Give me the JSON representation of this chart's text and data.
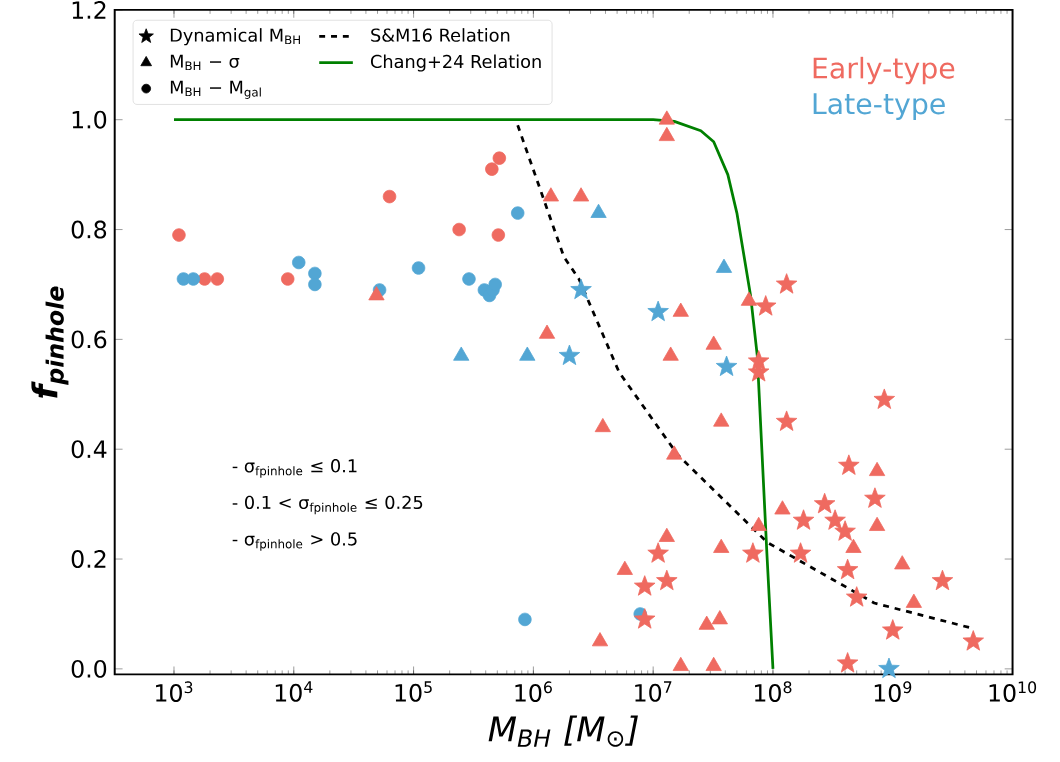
{
  "chart_data": {
    "type": "scatter",
    "xlabel": "M$_{BH}$ [M$_{⊙}$]",
    "ylabel": "f$_{pinhole}$",
    "log": "x",
    "xlim": [
      320,
      10000000000.0
    ],
    "ylim": [
      -0.01,
      1.2
    ],
    "xticks": [
      {
        "value": 1000,
        "label": "10$^{3}$"
      },
      {
        "value": 10000,
        "label": "10$^{4}$"
      },
      {
        "value": 100000,
        "label": "10$^{5}$"
      },
      {
        "value": 1000000,
        "label": "10$^{6}$"
      },
      {
        "value": 10000000,
        "label": "10$^{7}$"
      },
      {
        "value": 100000000,
        "label": "10$^{8}$"
      },
      {
        "value": 1000000000,
        "label": "10$^{9}$"
      },
      {
        "value": 10000000000,
        "label": "10$^{10}$"
      }
    ],
    "yticks": [
      {
        "value": 0,
        "label": "0.0"
      },
      {
        "value": 0.2,
        "label": "0.2"
      },
      {
        "value": 0.4,
        "label": "0.4"
      },
      {
        "value": 0.6,
        "label": "0.6"
      },
      {
        "value": 0.8,
        "label": "0.8"
      },
      {
        "value": 1.0,
        "label": "1.0"
      },
      {
        "value": 1.2,
        "label": "1.2"
      }
    ],
    "legend": "top left",
    "annotations": [
      "- σ$_{fpinhole}$ ≤ 0.1",
      "- 0.1 < σ$_{fpinhole}$ ≤ 0.25",
      "- σ$_{fpinhole}$ > 0.5"
    ],
    "series": [
      {
        "name": "Dynamical M$_{BH}$",
        "marker": "star",
        "color": "#000000"
      },
      {
        "name": "M$_{BH}$ − σ",
        "marker": "triangle",
        "color": "#000000"
      },
      {
        "name": "M$_{BH}$ − M$_{gal}$",
        "marker": "circle",
        "color": "#000000"
      },
      {
        "name": "S&M16 Relation",
        "type": "line",
        "line_style": "dashed",
        "color": "#000000",
        "x": [
          740000.0,
          1800000.0,
          2400000.0,
          5200000.0,
          16000000.0,
          90000000.0,
          700000000.0,
          4600000000.0
        ],
        "values": [
          0.99,
          0.75,
          0.71,
          0.54,
          0.39,
          0.23,
          0.12,
          0.074
        ]
      },
      {
        "name": "Chang+24 Relation",
        "type": "line",
        "line_style": "solid",
        "color": "#008000",
        "x": [
          1000.0,
          10000000.0,
          15000000.0,
          25000000.0,
          32000000.0,
          42000000.0,
          50000000.0,
          65000000.0,
          74000000.0,
          89000000.0,
          100000000.0
        ],
        "values": [
          1.0,
          1.0,
          0.997,
          0.98,
          0.96,
          0.9,
          0.83,
          0.68,
          0.57,
          0.21,
          0
        ]
      },
      {
        "marker": "circle",
        "color": "#ef6a60",
        "x": [
          1100.0,
          1800.0,
          2300.0,
          8900.0,
          63000.0,
          240000.0,
          450000.0,
          520000.0,
          510000.0
        ],
        "values": [
          0.79,
          0.71,
          0.71,
          0.71,
          0.86,
          0.8,
          0.91,
          0.93,
          0.79
        ]
      },
      {
        "marker": "circle",
        "color": "#52a6d4",
        "x": [
          1200.0,
          1450.0,
          11000.0,
          15000.0,
          15000.0,
          52000.0,
          110000.0,
          290000.0,
          390000.0,
          430000.0,
          460000.0,
          480000.0,
          740000.0,
          850000.0,
          7800000.0
        ],
        "values": [
          0.71,
          0.71,
          0.74,
          0.72,
          0.7,
          0.69,
          0.73,
          0.71,
          0.69,
          0.68,
          0.69,
          0.7,
          0.83,
          0.09,
          0.1
        ]
      },
      {
        "marker": "triangle",
        "color": "#ef6a60",
        "x": [
          49000.0,
          1400000.0,
          2500000.0,
          1300000.0,
          13000000.0,
          13000000.0,
          17000000.0,
          14000000.0,
          32000000.0,
          63000000.0,
          37000000.0,
          3800000.0,
          15000000.0,
          740000000.0,
          120000000.0,
          740000000.0,
          13000000.0,
          76000000.0,
          37000000.0,
          470000000.0,
          1200000000.0,
          5800000.0,
          1500000000.0,
          28000000.0,
          36000000.0,
          3600000.0,
          17000000.0,
          32000000.0
        ],
        "values": [
          0.68,
          0.86,
          0.86,
          0.61,
          1.0,
          0.97,
          0.65,
          0.57,
          0.59,
          0.67,
          0.45,
          0.44,
          0.39,
          0.36,
          0.29,
          0.26,
          0.24,
          0.26,
          0.22,
          0.22,
          0.19,
          0.18,
          0.12,
          0.08,
          0.09,
          0.05,
          0.005,
          0.005
        ]
      },
      {
        "marker": "triangle",
        "color": "#52a6d4",
        "x": [
          250000.0,
          890000.0,
          3500000.0,
          39000000.0
        ],
        "values": [
          0.57,
          0.57,
          0.83,
          0.73
        ]
      },
      {
        "name": "Early-type",
        "marker": "star",
        "color": "#ef6a60",
        "x": [
          87000000.0,
          130000000.0,
          76000000.0,
          850000000.0,
          130000000.0,
          430000000.0,
          710000000.0,
          270000000.0,
          180000000.0,
          330000000.0,
          400000000.0,
          68000000.0,
          170000000.0,
          11000000.0,
          420000000.0,
          13000000.0,
          2600000000.0,
          8500000.0,
          500000000.0,
          8500000.0,
          1000000000.0,
          4700000000.0,
          420000000.0,
          76000000.0
        ],
        "values": [
          0.66,
          0.7,
          0.56,
          0.49,
          0.45,
          0.37,
          0.31,
          0.3,
          0.27,
          0.27,
          0.25,
          0.21,
          0.21,
          0.21,
          0.18,
          0.16,
          0.16,
          0.15,
          0.13,
          0.09,
          0.07,
          0.05,
          0.01,
          0.54
        ]
      },
      {
        "name": "Late-type",
        "marker": "star",
        "color": "#52a6d4",
        "x": [
          2000000.0,
          2500000.0,
          11000000.0,
          41000000.0,
          930000000.0
        ],
        "values": [
          0.57,
          0.69,
          0.65,
          0.55,
          0.0
        ]
      }
    ]
  }
}
